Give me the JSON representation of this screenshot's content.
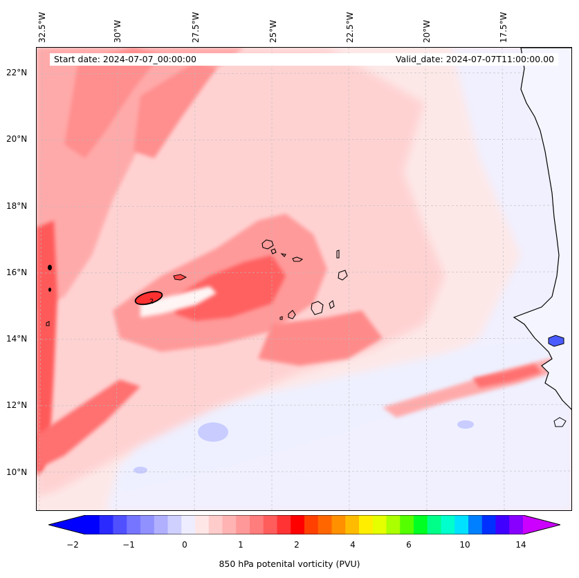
{
  "map": {
    "start_date": "Start date: 2024-07-07_00:00:00",
    "valid_date": "Valid_date: 2024-07-07T11:00:00.00",
    "longitude_labels": [
      "32.5°W",
      "30°W",
      "27.5°W",
      "25°W",
      "22.5°W",
      "20°W",
      "17.5°W"
    ],
    "latitude_labels": [
      "22°N",
      "20°N",
      "18°N",
      "16°N",
      "14°N",
      "12°N",
      "10°N"
    ],
    "contour_label": "2",
    "variable": "850 hPa potential vorticity",
    "units": "PVU"
  },
  "colorbar": {
    "label": "850 hPa potenital vorticity (PVU)",
    "ticks": [
      "−2",
      "−1",
      "0",
      "1",
      "2",
      "4",
      "6",
      "10",
      "14"
    ],
    "colors": [
      "#0000ff",
      "#2a2aff",
      "#5050ff",
      "#7575ff",
      "#9090ff",
      "#b0b0ff",
      "#d0d0ff",
      "#ededff",
      "#ffe6e6",
      "#ffcccc",
      "#ffb3b3",
      "#ff9999",
      "#ff7d7d",
      "#ff5c5c",
      "#ff3333",
      "#ff0000",
      "#ff4000",
      "#ff6600",
      "#ff9000",
      "#ffbb00",
      "#ffee00",
      "#e6ff00",
      "#aaff00",
      "#55ff00",
      "#00ff22",
      "#00ff88",
      "#00ffcc",
      "#00e0ff",
      "#0080ff",
      "#0030ff",
      "#4000ff",
      "#8800ff"
    ],
    "over_color": "#cc00ff",
    "under_color": "#0000ff"
  }
}
